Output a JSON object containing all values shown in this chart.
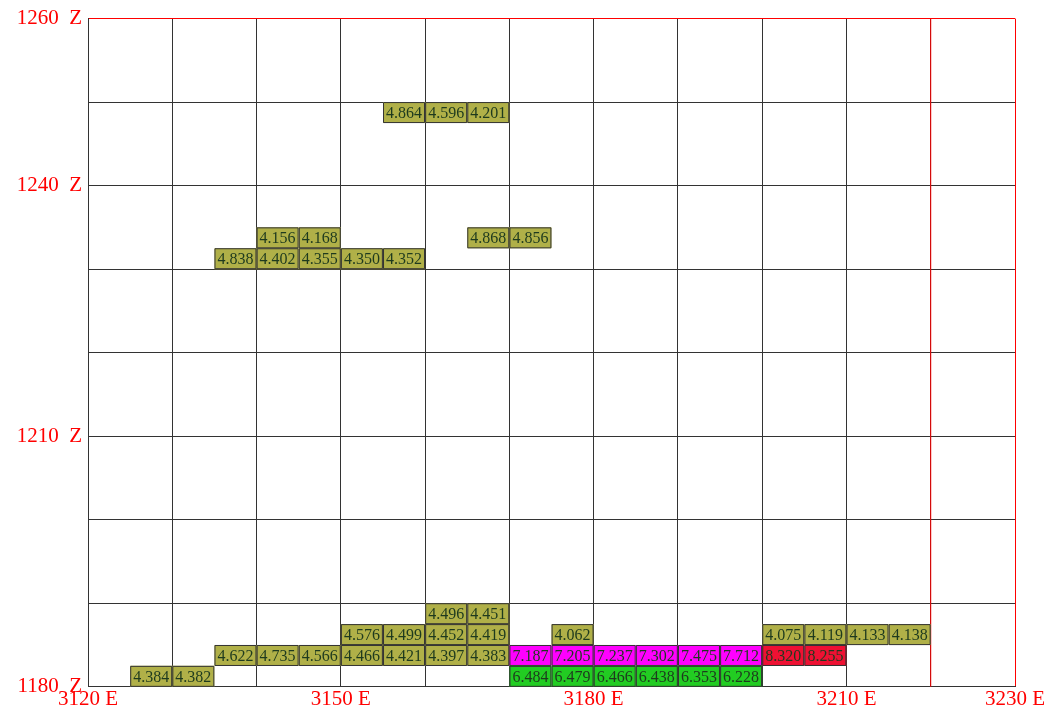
{
  "chart_data": {
    "type": "scatter",
    "xlim": [
      3120,
      3230
    ],
    "ylim": [
      1180,
      1260
    ],
    "xticks": [
      {
        "value": 3120,
        "label": "3120 E"
      },
      {
        "value": 3130,
        "label": null
      },
      {
        "value": 3140,
        "label": null
      },
      {
        "value": 3150,
        "label": "3150 E"
      },
      {
        "value": 3160,
        "label": null
      },
      {
        "value": 3170,
        "label": null
      },
      {
        "value": 3180,
        "label": "3180 E"
      },
      {
        "value": 3190,
        "label": null
      },
      {
        "value": 3200,
        "label": null
      },
      {
        "value": 3210,
        "label": "3210 E"
      },
      {
        "value": 3220,
        "label": null
      },
      {
        "value": 3230,
        "label": "3230 E"
      }
    ],
    "yticks": [
      {
        "value": 1180,
        "label": "1180  Z"
      },
      {
        "value": 1190,
        "label": null
      },
      {
        "value": 1200,
        "label": null
      },
      {
        "value": 1210,
        "label": "1210  Z"
      },
      {
        "value": 1220,
        "label": null
      },
      {
        "value": 1230,
        "label": null
      },
      {
        "value": 1240,
        "label": "1240  Z"
      },
      {
        "value": 1250,
        "label": null
      },
      {
        "value": 1260,
        "label": "1260  Z"
      }
    ],
    "grid": true,
    "marker": "square",
    "ref_lines": [
      {
        "axis": "x",
        "value": 3220,
        "color": "#ff0000"
      }
    ],
    "x": [
      3157.5,
      3162.5,
      3167.5,
      3142.5,
      3147.5,
      3167.5,
      3172.5,
      3137.5,
      3142.5,
      3147.5,
      3152.5,
      3157.5,
      3162.5,
      3167.5,
      3152.5,
      3157.5,
      3162.5,
      3167.5,
      3177.5,
      3202.5,
      3207.5,
      3212.5,
      3217.5,
      3137.5,
      3142.5,
      3147.5,
      3152.5,
      3157.5,
      3162.5,
      3167.5,
      3172.5,
      3177.5,
      3182.5,
      3187.5,
      3192.5,
      3197.5,
      3202.5,
      3207.5,
      3127.5,
      3132.5,
      3172.5,
      3177.5,
      3182.5,
      3187.5,
      3192.5,
      3197.5
    ],
    "values": [
      1248.75,
      1248.75,
      1248.75,
      1233.75,
      1233.75,
      1233.75,
      1233.75,
      1231.25,
      1231.25,
      1231.25,
      1231.25,
      1231.25,
      1188.75,
      1188.75,
      1186.25,
      1186.25,
      1186.25,
      1186.25,
      1186.25,
      1186.25,
      1186.25,
      1186.25,
      1186.25,
      1183.75,
      1183.75,
      1183.75,
      1183.75,
      1183.75,
      1183.75,
      1183.75,
      1183.75,
      1183.75,
      1183.75,
      1183.75,
      1183.75,
      1183.75,
      1183.75,
      1183.75,
      1181.25,
      1181.25,
      1181.25,
      1181.25,
      1181.25,
      1181.25,
      1181.25,
      1181.25
    ],
    "colors": [
      "#b0b048",
      "#b0b048",
      "#b0b048",
      "#b0b048",
      "#b0b048",
      "#b0b048",
      "#b0b048",
      "#b0b048",
      "#b0b048",
      "#b0b048",
      "#b0b048",
      "#b0b048",
      "#b0b048",
      "#b0b048",
      "#b0b048",
      "#b0b048",
      "#b0b048",
      "#b0b048",
      "#b0b048",
      "#b0b048",
      "#b0b048",
      "#b0b048",
      "#b0b048",
      "#b0b048",
      "#b0b048",
      "#b0b048",
      "#b0b048",
      "#b0b048",
      "#b0b048",
      "#b0b048",
      "#ff00ff",
      "#ff00ff",
      "#ff00ff",
      "#ff00ff",
      "#ff00ff",
      "#ff00ff",
      "#ee1133",
      "#ee1133",
      "#b0b048",
      "#b0b048",
      "#22cc22",
      "#22cc22",
      "#22cc22",
      "#22cc22",
      "#22cc22",
      "#22cc22"
    ],
    "annotations": [
      {
        "text": "4.864",
        "x": 3157.5,
        "y": 1248.75
      },
      {
        "text": "4.596",
        "x": 3162.5,
        "y": 1248.75
      },
      {
        "text": "4.201",
        "x": 3167.5,
        "y": 1248.75
      },
      {
        "text": "4.156",
        "x": 3142.5,
        "y": 1233.75
      },
      {
        "text": "4.168",
        "x": 3147.5,
        "y": 1233.75
      },
      {
        "text": "4.868",
        "x": 3167.5,
        "y": 1233.75
      },
      {
        "text": "4.856",
        "x": 3172.5,
        "y": 1233.75
      },
      {
        "text": "4.838",
        "x": 3137.5,
        "y": 1231.25
      },
      {
        "text": "4.402",
        "x": 3142.5,
        "y": 1231.25
      },
      {
        "text": "4.355",
        "x": 3147.5,
        "y": 1231.25
      },
      {
        "text": "4.350",
        "x": 3152.5,
        "y": 1231.25
      },
      {
        "text": "4.352",
        "x": 3157.5,
        "y": 1231.25
      },
      {
        "text": "4.496",
        "x": 3162.5,
        "y": 1188.75
      },
      {
        "text": "4.451",
        "x": 3167.5,
        "y": 1188.75
      },
      {
        "text": "4.576",
        "x": 3152.5,
        "y": 1186.25
      },
      {
        "text": "4.499",
        "x": 3157.5,
        "y": 1186.25
      },
      {
        "text": "4.452",
        "x": 3162.5,
        "y": 1186.25
      },
      {
        "text": "4.419",
        "x": 3167.5,
        "y": 1186.25
      },
      {
        "text": "4.062",
        "x": 3177.5,
        "y": 1186.25
      },
      {
        "text": "4.075",
        "x": 3202.5,
        "y": 1186.25
      },
      {
        "text": "4.119",
        "x": 3207.5,
        "y": 1186.25
      },
      {
        "text": "4.133",
        "x": 3212.5,
        "y": 1186.25
      },
      {
        "text": "4.138",
        "x": 3217.5,
        "y": 1186.25
      },
      {
        "text": "4.622",
        "x": 3137.5,
        "y": 1183.75
      },
      {
        "text": "4.735",
        "x": 3142.5,
        "y": 1183.75
      },
      {
        "text": "4.566",
        "x": 3147.5,
        "y": 1183.75
      },
      {
        "text": "4.466",
        "x": 3152.5,
        "y": 1183.75
      },
      {
        "text": "4.421",
        "x": 3157.5,
        "y": 1183.75
      },
      {
        "text": "4.397",
        "x": 3162.5,
        "y": 1183.75
      },
      {
        "text": "4.383",
        "x": 3167.5,
        "y": 1183.75
      },
      {
        "text": "7.187",
        "x": 3172.5,
        "y": 1183.75
      },
      {
        "text": "7.205",
        "x": 3177.5,
        "y": 1183.75
      },
      {
        "text": "7.237",
        "x": 3182.5,
        "y": 1183.75
      },
      {
        "text": "7.302",
        "x": 3187.5,
        "y": 1183.75
      },
      {
        "text": "7.475",
        "x": 3192.5,
        "y": 1183.75
      },
      {
        "text": "7.712",
        "x": 3197.5,
        "y": 1183.75
      },
      {
        "text": "8.320",
        "x": 3202.5,
        "y": 1183.75
      },
      {
        "text": "8.255",
        "x": 3207.5,
        "y": 1183.75
      },
      {
        "text": "4.384",
        "x": 3127.5,
        "y": 1181.25
      },
      {
        "text": "4.382",
        "x": 3132.5,
        "y": 1181.25
      },
      {
        "text": "6.484",
        "x": 3172.5,
        "y": 1181.25
      },
      {
        "text": "6.479",
        "x": 3177.5,
        "y": 1181.25
      },
      {
        "text": "6.466",
        "x": 3182.5,
        "y": 1181.25
      },
      {
        "text": "6.438",
        "x": 3187.5,
        "y": 1181.25
      },
      {
        "text": "6.353",
        "x": 3192.5,
        "y": 1181.25
      },
      {
        "text": "6.228",
        "x": 3197.5,
        "y": 1181.25
      }
    ]
  }
}
